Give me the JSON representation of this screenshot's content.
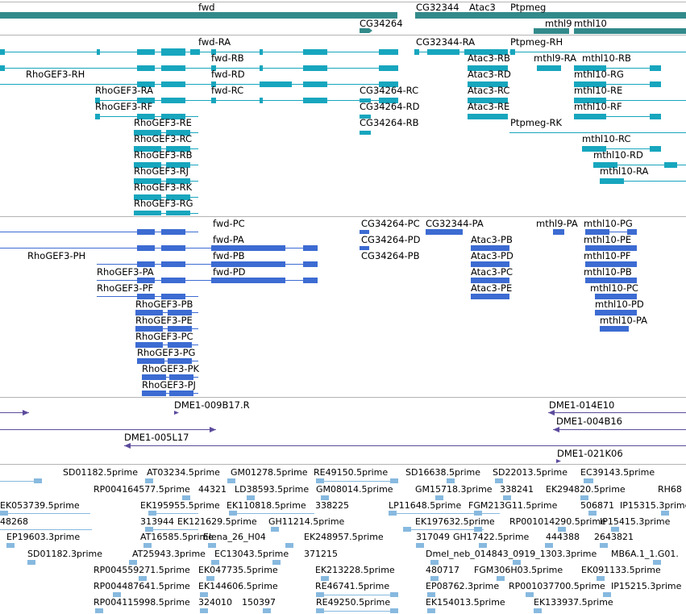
{
  "colors": {
    "track_gene": "#338a8a",
    "track_transcript": "#17a6be",
    "track_cds": "#3c6bd2",
    "track_clone": "#5c4b9c",
    "track_est": "#87b9df",
    "divider": "#b4b4b4"
  },
  "tracks": {
    "gene": {
      "features": [
        {
          "name": "fwd",
          "icon": "strand-right-arrow"
        },
        {
          "name": "CG32344"
        },
        {
          "name": "Atac3"
        },
        {
          "name": "Ptpmeg"
        },
        {
          "name": "CG34264"
        },
        {
          "name": "mthl9"
        },
        {
          "name": "mthl10"
        }
      ]
    },
    "transcript": {
      "features": [
        {
          "name": "fwd-RA"
        },
        {
          "name": "fwd-RB"
        },
        {
          "name": "fwd-RD"
        },
        {
          "name": "fwd-RC"
        },
        {
          "name": "CG32344-RA"
        },
        {
          "name": "Ptpmeg-RH"
        },
        {
          "name": "Atac3-RB"
        },
        {
          "name": "mthl9-RA"
        },
        {
          "name": "mthl10-RB"
        },
        {
          "name": "RhoGEF3-RH"
        },
        {
          "name": "Atac3-RD"
        },
        {
          "name": "mthl10-RG"
        },
        {
          "name": "RhoGEF3-RA"
        },
        {
          "name": "CG34264-RC"
        },
        {
          "name": "Atac3-RC"
        },
        {
          "name": "mthl10-RE"
        },
        {
          "name": "RhoGEF3-RF"
        },
        {
          "name": "CG34264-RD"
        },
        {
          "name": "Atac3-RE"
        },
        {
          "name": "mthl10-RF"
        },
        {
          "name": "RhoGEF3-RE"
        },
        {
          "name": "CG34264-RB"
        },
        {
          "name": "Ptpmeg-RK"
        },
        {
          "name": "RhoGEF3-RC"
        },
        {
          "name": "mthl10-RC"
        },
        {
          "name": "RhoGEF3-RB"
        },
        {
          "name": "mthl10-RD"
        },
        {
          "name": "RhoGEF3-RJ"
        },
        {
          "name": "mthl10-RA"
        },
        {
          "name": "RhoGEF3-RK"
        },
        {
          "name": "RhoGEF3-RG"
        }
      ]
    },
    "cds": {
      "features": [
        {
          "name": "fwd-PC"
        },
        {
          "name": "CG34264-PC"
        },
        {
          "name": "CG32344-PA"
        },
        {
          "name": "mthl9-PA"
        },
        {
          "name": "mthl10-PG"
        },
        {
          "name": "fwd-PA"
        },
        {
          "name": "CG34264-PD"
        },
        {
          "name": "Atac3-PB"
        },
        {
          "name": "mthl10-PE"
        },
        {
          "name": "RhoGEF3-PH"
        },
        {
          "name": "fwd-PB"
        },
        {
          "name": "CG34264-PB"
        },
        {
          "name": "Atac3-PD"
        },
        {
          "name": "mthl10-PF"
        },
        {
          "name": "RhoGEF3-PA"
        },
        {
          "name": "fwd-PD"
        },
        {
          "name": "Atac3-PC"
        },
        {
          "name": "mthl10-PB"
        },
        {
          "name": "RhoGEF3-PF"
        },
        {
          "name": "Atac3-PE"
        },
        {
          "name": "mthl10-PC"
        },
        {
          "name": "RhoGEF3-PB"
        },
        {
          "name": "mthl10-PD"
        },
        {
          "name": "RhoGEF3-PE"
        },
        {
          "name": "mthl10-PA"
        },
        {
          "name": "RhoGEF3-PC"
        },
        {
          "name": "RhoGEF3-PG"
        },
        {
          "name": "RhoGEF3-PK"
        },
        {
          "name": "RhoGEF3-PJ"
        }
      ]
    },
    "clone": {
      "features": [
        {
          "name": "DME1-009B17.R"
        },
        {
          "name": "DME1-014E10"
        },
        {
          "name": "DME1-004B16"
        },
        {
          "name": "DME1-005L17"
        },
        {
          "name": "DME1-021K06"
        }
      ]
    },
    "est": {
      "features": [
        {
          "name": "SD01182.5prime"
        },
        {
          "name": "AT03234.5prime"
        },
        {
          "name": "GM01278.5prime"
        },
        {
          "name": "RE49150.5prime"
        },
        {
          "name": "SD16638.5prime"
        },
        {
          "name": "SD22013.5prime"
        },
        {
          "name": "EC39143.5prime"
        },
        {
          "name": "RP004164577.5prime"
        },
        {
          "name": "44321"
        },
        {
          "name": "LD38593.5prime"
        },
        {
          "name": "GM08014.5prime"
        },
        {
          "name": "GM15718.3prime"
        },
        {
          "name": "338241"
        },
        {
          "name": "EK294820.5prime"
        },
        {
          "name": "RH68"
        },
        {
          "name": "EK053739.5prime"
        },
        {
          "name": "EK195955.5prime"
        },
        {
          "name": "EK110818.5prime"
        },
        {
          "name": "338225"
        },
        {
          "name": "LP11648.5prime"
        },
        {
          "name": "FGM213G11.5prime"
        },
        {
          "name": "506871"
        },
        {
          "name": "IP15315.3prime"
        },
        {
          "name": "48268"
        },
        {
          "name": "313944"
        },
        {
          "name": "EK121629.5prime"
        },
        {
          "name": "GH11214.5prime"
        },
        {
          "name": "EK197632.5prime"
        },
        {
          "name": "RP001014290.5prime"
        },
        {
          "name": "IP15415.3prime"
        },
        {
          "name": "EP19603.3prime"
        },
        {
          "name": "AT16585.5prime"
        },
        {
          "name": "Elena_26_H04"
        },
        {
          "name": "EK248957.5prime"
        },
        {
          "name": "317049"
        },
        {
          "name": "GH17422.5prime"
        },
        {
          "name": "444388"
        },
        {
          "name": "2643821"
        },
        {
          "name": "SD01182.3prime"
        },
        {
          "name": "AT25943.3prime"
        },
        {
          "name": "EC13043.5prime"
        },
        {
          "name": "371215"
        },
        {
          "name": "Dmel_neb_014843_0919_1303.3prime"
        },
        {
          "name": "MB6A.1_1.G01."
        },
        {
          "name": "RP004559271.5prime"
        },
        {
          "name": "EK047735.5prime"
        },
        {
          "name": "EK213228.5prime"
        },
        {
          "name": "480717"
        },
        {
          "name": "FGM306H03.5prime"
        },
        {
          "name": "EK091133.5prime"
        },
        {
          "name": "RP004487641.5prime"
        },
        {
          "name": "EK144606.5prime"
        },
        {
          "name": "RE46741.5prime"
        },
        {
          "name": "EP08762.3prime"
        },
        {
          "name": "RP001037700.5prime"
        },
        {
          "name": "IP15215.3prime"
        },
        {
          "name": "RP004115998.5prime"
        },
        {
          "name": "324010"
        },
        {
          "name": "150397"
        },
        {
          "name": "RE49250.5prime"
        },
        {
          "name": "EK154013.5prime"
        },
        {
          "name": "EK133937.5prime"
        }
      ]
    }
  }
}
